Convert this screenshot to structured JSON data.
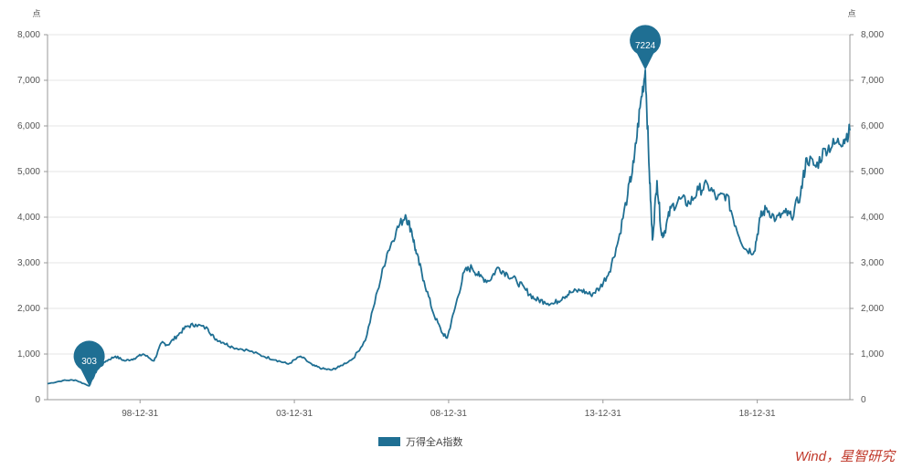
{
  "chart_data": {
    "type": "line",
    "title": "",
    "xlabel": "",
    "ylabel_left": "点",
    "ylabel_right": "点",
    "ylim": [
      0,
      8000
    ],
    "y_ticks": [
      "0",
      "1,000",
      "2,000",
      "3,000",
      "4,000",
      "5,000",
      "6,000",
      "7,000",
      "8,000"
    ],
    "x_tick_labels": [
      "98-12-31",
      "03-12-31",
      "08-12-31",
      "13-12-31",
      "18-12-31"
    ],
    "grid": true,
    "legend_position": "bottom",
    "series": [
      {
        "name": "万得全A指数",
        "color": "#1f6f93",
        "x": [
          1996.0,
          1996.5,
          1996.9,
          1997.35,
          1997.6,
          1997.9,
          1998.2,
          1998.5,
          1998.8,
          1999.1,
          1999.45,
          1999.7,
          1999.9,
          2000.2,
          2000.5,
          2000.8,
          2001.2,
          2001.4,
          2001.7,
          2002.0,
          2002.5,
          2003.0,
          2003.4,
          2003.8,
          2004.2,
          2004.6,
          2004.9,
          2005.2,
          2005.45,
          2005.9,
          2006.3,
          2006.7,
          2007.0,
          2007.3,
          2007.6,
          2007.8,
          2007.95,
          2008.2,
          2008.5,
          2008.8,
          2008.95,
          2009.2,
          2009.5,
          2009.75,
          2010.0,
          2010.3,
          2010.6,
          2010.9,
          2011.2,
          2011.5,
          2011.8,
          2012.1,
          2012.4,
          2012.7,
          2012.95,
          2013.3,
          2013.6,
          2013.9,
          2014.2,
          2014.5,
          2014.8,
          2015.0,
          2015.2,
          2015.37,
          2015.5,
          2015.6,
          2015.75,
          2015.9,
          2016.0,
          2016.2,
          2016.5,
          2016.8,
          2017.1,
          2017.4,
          2017.7,
          2018.0,
          2018.3,
          2018.6,
          2018.9,
          2019.1,
          2019.3,
          2019.6,
          2019.9,
          2020.1,
          2020.4,
          2020.6,
          2020.9,
          2021.2,
          2021.5,
          2021.8,
          2022.0
        ],
        "values": [
          350,
          420,
          430,
          303,
          650,
          850,
          950,
          850,
          900,
          1000,
          850,
          1250,
          1200,
          1400,
          1600,
          1650,
          1550,
          1350,
          1250,
          1150,
          1080,
          950,
          870,
          780,
          950,
          750,
          680,
          650,
          720,
          900,
          1300,
          2400,
          3200,
          3700,
          4050,
          3700,
          3200,
          2600,
          1900,
          1450,
          1350,
          2000,
          2800,
          2900,
          2700,
          2600,
          2900,
          2750,
          2600,
          2400,
          2200,
          2150,
          2100,
          2250,
          2350,
          2400,
          2300,
          2450,
          2800,
          3500,
          4500,
          5200,
          6400,
          7224,
          5000,
          3500,
          4800,
          3600,
          3700,
          4200,
          4400,
          4300,
          4600,
          4700,
          4400,
          4500,
          3800,
          3300,
          3250,
          4000,
          4200,
          3950,
          4100,
          4000,
          4500,
          5300,
          5100,
          5500,
          5600,
          5700,
          5900
        ]
      }
    ],
    "annotations": [
      {
        "label": "303",
        "x": 1997.35,
        "y": 303
      },
      {
        "label": "7224",
        "x": 2015.37,
        "y": 7224
      }
    ]
  },
  "source_text": "Wind，星智研究"
}
